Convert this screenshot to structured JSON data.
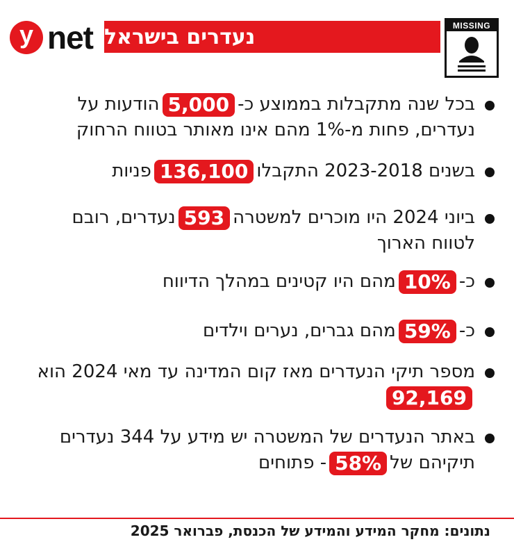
{
  "brand": {
    "logo_mark": "y",
    "logo_text": "net",
    "accent_color": "#e4181e"
  },
  "header": {
    "title": "נעדרים בישראל",
    "badge_text": "MISSING",
    "badge_icon": "missing-person-poster-icon"
  },
  "items": [
    {
      "before": "בכל שנה מתקבלות בממוצע כ-",
      "highlight": "5,000",
      "after": "הודעות על נעדרים, פחות מ-1% מהם אינו מאותר בטווח הרחוק"
    },
    {
      "before": "בשנים 2023-2018 התקבלו",
      "highlight": "136,100",
      "after": "פניות"
    },
    {
      "before": "ביוני 2024 היו מוכרים למשטרה",
      "highlight": "593",
      "after": "נעדרים, רובם לטווח הארוך"
    },
    {
      "before": "כ-",
      "highlight": "10%",
      "after": "מהם היו קטינים במהלך הדיווח"
    },
    {
      "before": "כ-",
      "highlight": "59%",
      "after": "מהם גברים, נערים וילדים"
    },
    {
      "before": "מספר תיקי הנעדרים מאז קום המדינה עד מאי 2024 הוא",
      "highlight": "92,169",
      "after": ""
    },
    {
      "before": "באתר הנעדרים של המשטרה יש מידע על 344 נעדרים תיקיהם של",
      "highlight": "58%",
      "after": "- פתוחים"
    }
  ],
  "footer": {
    "source": "נתונים: מחקר המידע והמידע של הכנסת, פברואר 2025"
  }
}
